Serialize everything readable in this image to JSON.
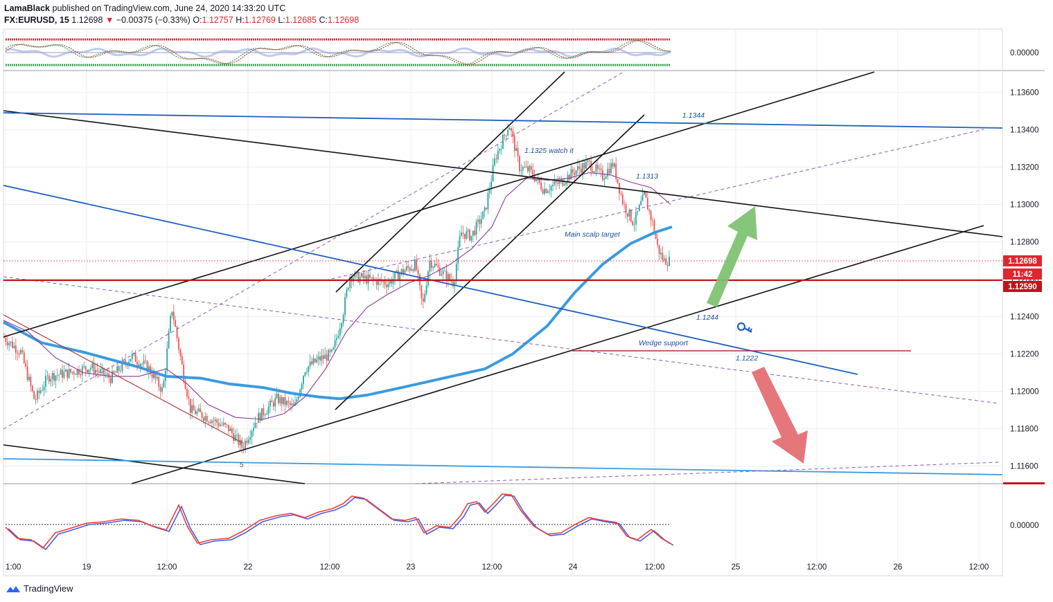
{
  "header": {
    "author": "LamaBlack",
    "published": "published on TradingView.com, June 24, 2020 14:33:20 UTC",
    "symbol": "FX:EURUSD, 15",
    "last": "1.12698",
    "change_arrow": "▼",
    "change": "−0.00375 (−0.33%)",
    "o_label": "O:",
    "o": "1.12757",
    "h_label": "H:",
    "h": "1.12769",
    "l_label": "L:",
    "l": "1.12685",
    "c_label": "C:",
    "c": "1.12698"
  },
  "footer": {
    "brand": "TradingView",
    "logo_icon": "tradingview-logo-icon"
  },
  "chart_data": {
    "type": "candlestick",
    "y_range": [
      1.115,
      1.1378
    ],
    "y_ticks": [
      "1.13600",
      "1.13400",
      "1.13200",
      "1.13000",
      "1.12800",
      "1.12600",
      "1.12400",
      "1.12200",
      "1.12000",
      "1.11800",
      "1.11600"
    ],
    "x_ticks": [
      "1:00",
      "19",
      "12:00",
      "22",
      "12:00",
      "23",
      "12:00",
      "24",
      "12:00",
      "25",
      "12:00",
      "26",
      "12:00"
    ],
    "price_tags": [
      {
        "label": "1.12698",
        "color": "#e0262f"
      },
      {
        "label": "11:42",
        "color": "#e0262f"
      },
      {
        "label": "1.12590",
        "color": "#c0141a"
      }
    ],
    "annotations": [
      "1.1344",
      "1.1325 watch it",
      "1.1313",
      "Main scalp target",
      "1.1244",
      "Wedge support",
      "1.1222",
      "5"
    ],
    "top_oscillator_tick": "0.00000",
    "bottom_oscillator_tick": "0.00000",
    "colors": {
      "up": "#26a69a",
      "down": "#ef5350",
      "ma_blue": "#3a9be0",
      "ma_purple": "#8a3a9e",
      "level_red": "#c0141a",
      "trend_blue": "#1d5fbf",
      "arrow_green": "#7cc16f",
      "arrow_red": "#e36a6f"
    }
  }
}
